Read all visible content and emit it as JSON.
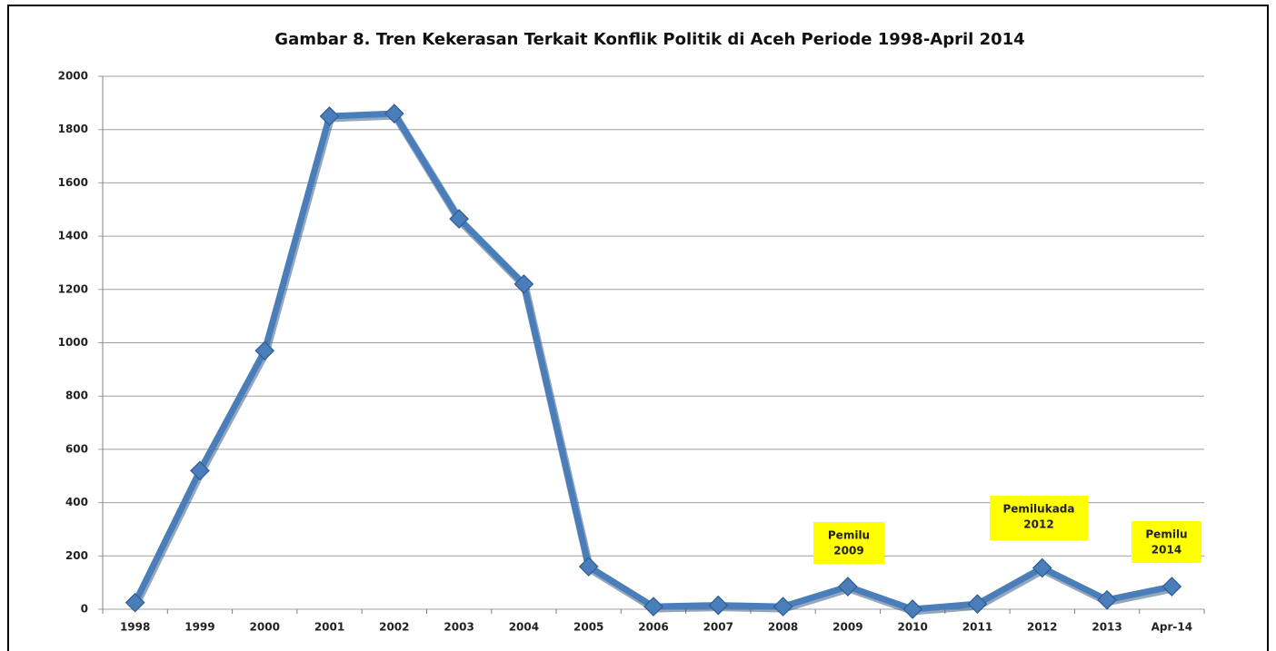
{
  "chart_data": {
    "type": "line",
    "title": "Gambar 8. Tren Kekerasan Terkait Konflik Politik di Aceh Periode 1998-April 2014",
    "categories": [
      "1998",
      "1999",
      "2000",
      "2001",
      "2002",
      "2003",
      "2004",
      "2005",
      "2006",
      "2007",
      "2008",
      "2009",
      "2010",
      "2011",
      "2012",
      "2013",
      "Apr-14"
    ],
    "values": [
      25,
      520,
      970,
      1850,
      1860,
      1465,
      1220,
      160,
      10,
      15,
      10,
      85,
      0,
      20,
      155,
      35,
      85
    ],
    "color": "#4a7ebb",
    "ylim": [
      0,
      2000
    ],
    "yticks": [
      0,
      200,
      400,
      600,
      800,
      1000,
      1200,
      1400,
      1600,
      1800,
      2000
    ],
    "grid": true,
    "annotations": [
      [
        "Pemilu",
        "2009"
      ],
      [
        "Pemilukada",
        "2012"
      ],
      [
        "Pemilu",
        "2014"
      ]
    ]
  }
}
